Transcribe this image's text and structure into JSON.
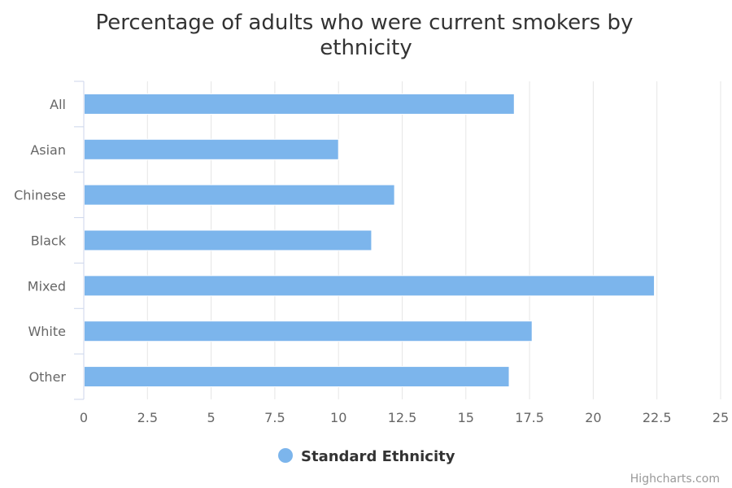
{
  "chart_data": {
    "type": "bar",
    "orientation": "horizontal",
    "title_lines": [
      "Percentage of adults who were current smokers by",
      "ethnicity"
    ],
    "categories": [
      "All",
      "Asian",
      "Chinese",
      "Black",
      "Mixed",
      "White",
      "Other"
    ],
    "series": [
      {
        "name": "Standard Ethnicity",
        "values": [
          16.9,
          10.0,
          12.2,
          11.3,
          22.4,
          17.6,
          16.7
        ],
        "color": "#7cb5ec"
      }
    ],
    "xlim": [
      0,
      25
    ],
    "xticks": [
      "0",
      "2.5",
      "5",
      "7.5",
      "10",
      "12.5",
      "15",
      "17.5",
      "20",
      "22.5",
      "25"
    ],
    "grid": true,
    "legend_position": "bottom-center"
  },
  "credits": "Highcharts.com",
  "colors": {
    "bar": "#7cb5ec",
    "grid": "#e6e6e6",
    "axis": "#ccd6eb"
  }
}
